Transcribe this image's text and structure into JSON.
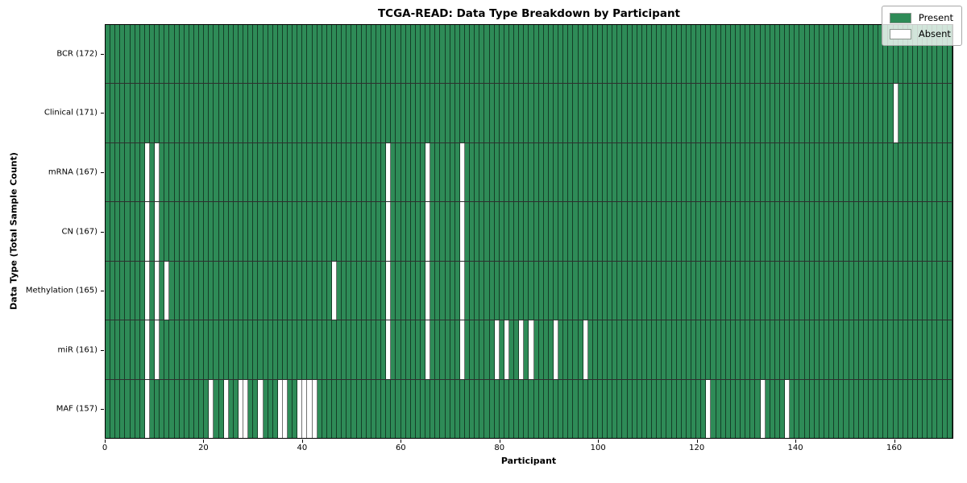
{
  "title": "TCGA-READ: Data Type Breakdown by Participant",
  "xlabel": "Participant",
  "ylabel": "Data Type (Total Sample Count)",
  "legend": {
    "present_label": "Present",
    "absent_label": "Absent"
  },
  "colors": {
    "present": "#2e8b57",
    "absent": "#ffffff"
  },
  "chart_data": {
    "type": "heatmap",
    "title": "TCGA-READ: Data Type Breakdown by Participant",
    "xlabel": "Participant",
    "ylabel": "Data Type (Total Sample Count)",
    "n_participants": 172,
    "x_range": [
      0,
      172
    ],
    "x_ticks": [
      0,
      20,
      40,
      60,
      80,
      100,
      120,
      140,
      160
    ],
    "legend_entries": [
      "Present",
      "Absent"
    ],
    "legend_position": "upper right",
    "grid": true,
    "rows": [
      {
        "label": "BCR (172)",
        "name": "BCR",
        "total": 172,
        "absent_participants": []
      },
      {
        "label": "Clinical (171)",
        "name": "Clinical",
        "total": 171,
        "absent_participants": [
          160
        ]
      },
      {
        "label": "mRNA (167)",
        "name": "mRNA",
        "total": 167,
        "absent_participants": [
          8,
          10,
          57,
          65,
          72
        ]
      },
      {
        "label": "CN (167)",
        "name": "CN",
        "total": 167,
        "absent_participants": [
          8,
          10,
          57,
          65,
          72
        ]
      },
      {
        "label": "Methylation (165)",
        "name": "Methylation",
        "total": 165,
        "absent_participants": [
          8,
          10,
          12,
          46,
          57,
          65,
          72
        ]
      },
      {
        "label": "miR (161)",
        "name": "miR",
        "total": 161,
        "absent_participants": [
          8,
          10,
          57,
          65,
          72,
          79,
          81,
          84,
          86,
          91,
          97
        ]
      },
      {
        "label": "MAF (157)",
        "name": "MAF",
        "total": 157,
        "absent_participants": [
          8,
          21,
          24,
          27,
          28,
          31,
          35,
          36,
          39,
          40,
          41,
          42,
          122,
          133,
          138
        ]
      }
    ]
  }
}
